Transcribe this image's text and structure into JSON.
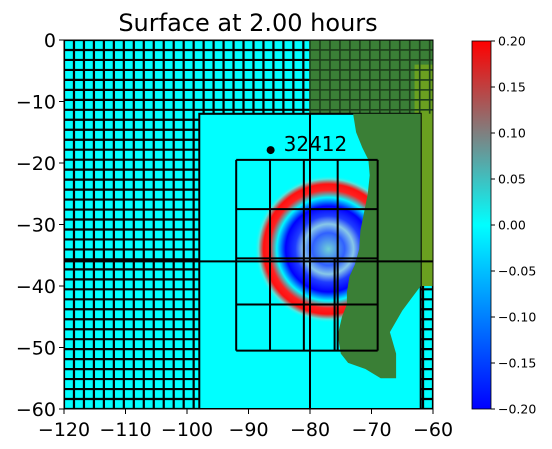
{
  "chart_data": {
    "type": "heatmap",
    "title": "Surface at 2.00 hours",
    "xlabel": "",
    "ylabel": "",
    "xlim": [
      -120,
      -60
    ],
    "ylim": [
      -60,
      0
    ],
    "x_ticks": [
      -120,
      -110,
      -100,
      -90,
      -80,
      -70,
      -60
    ],
    "y_ticks": [
      0,
      -10,
      -20,
      -30,
      -40,
      -50,
      -60
    ],
    "colorbar": {
      "min": -0.2,
      "max": 0.2,
      "ticks": [
        0.2,
        0.15,
        0.1,
        0.05,
        0.0,
        -0.05,
        -0.1,
        -0.15,
        -0.2
      ],
      "tick_labels": [
        "0.20",
        "0.15",
        "0.10",
        "0.05",
        "0.00",
        "−0.05",
        "−0.10",
        "−0.15",
        "−0.20"
      ],
      "colors": [
        "#0000ff",
        "#00ffff",
        "#ff0000"
      ]
    },
    "colors": {
      "ocean": "#00ffff",
      "land": "#3a7f36",
      "land_light": "#6aa020",
      "grid": "#000000"
    },
    "annotations": [
      {
        "label": "32412",
        "x": -86.4,
        "y": -17.9
      }
    ],
    "refinement_regions": [
      {
        "x": [
          -98,
          -62
        ],
        "y": [
          -60,
          -12
        ]
      },
      {
        "x": [
          -92,
          -69
        ],
        "y": [
          -50.5,
          -19.5
        ]
      }
    ],
    "wave_center": {
      "x": -77,
      "y": -34
    }
  }
}
